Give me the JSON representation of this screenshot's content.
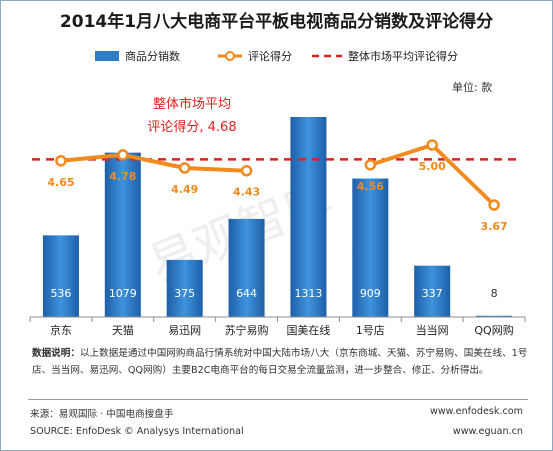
{
  "chart_data": {
    "type": "bar+line",
    "title": "2014年1月八大电商平台平板电视商品分销数及评论得分",
    "unit": "单位: 款",
    "categories": [
      "京东",
      "天猫",
      "易迅网",
      "苏宁易购",
      "国美在线",
      "1号店",
      "当当网",
      "QQ网购"
    ],
    "series": [
      {
        "name": "商品分销数",
        "type": "bar",
        "values": [
          536,
          1079,
          375,
          644,
          1313,
          909,
          337,
          8
        ]
      },
      {
        "name": "评论得分",
        "type": "line",
        "values": [
          4.65,
          4.78,
          4.49,
          4.43,
          null,
          4.56,
          5.0,
          3.67
        ]
      },
      {
        "name": "整体市场平均评论得分",
        "type": "reference-line",
        "value": 4.68
      }
    ],
    "avg_annotation": [
      "整体市场平均",
      "评论得分, 4.68"
    ],
    "watermark": "易观智库",
    "colors": {
      "bar": "#2e7dc8",
      "line": "#f28a1e",
      "avg": "#e02020",
      "score_label": "#f28a1e",
      "annotation": "#e02020"
    }
  },
  "footer": {
    "note_label": "数据说明：",
    "note_text": "以上数据是通过中国网购商品行情系统对中国大陆市场八大（京东商城、天猫、苏宁易购、国美在线、1号店、当当网、易迅网、QQ网购）主要B2C电商平台的每日交易全流量监测，进一步整合、修正、分析得出。",
    "source_cn": "来源：易观国际 · 中国电商搜盘手",
    "source_en": "SOURCE: EnfoDesk © Analysys International",
    "site1": "www.enfodesk.com",
    "site2": "www.eguan.cn"
  }
}
